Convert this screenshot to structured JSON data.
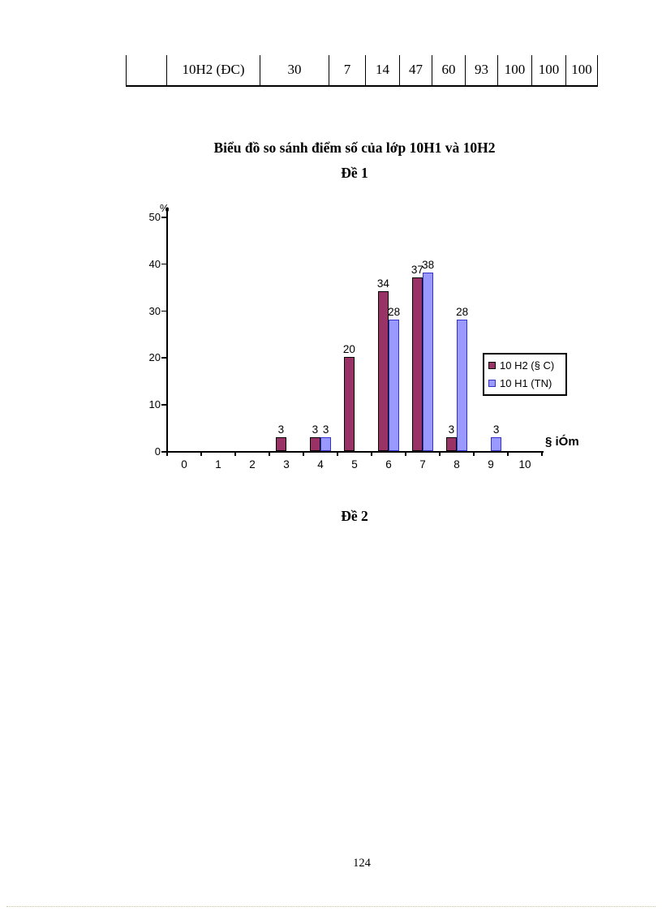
{
  "document": {
    "heading_de2": "Đề 2",
    "page_number": "124"
  },
  "table": {
    "row": [
      "",
      "10H2 (ĐC)",
      "30",
      "7",
      "14",
      "47",
      "60",
      "93",
      "100",
      "100",
      "100"
    ]
  },
  "chart_data": {
    "type": "bar",
    "title": "Biểu đồ so sánh điểm số của lớp 10H1 và 10H2",
    "subtitle": "Đề 1",
    "categories": [
      "0",
      "1",
      "2",
      "3",
      "4",
      "5",
      "6",
      "7",
      "8",
      "9",
      "10"
    ],
    "series": [
      {
        "name": "10 H2 (§ C)",
        "color": "#993366",
        "border_color": "#000000",
        "values": [
          0,
          0,
          0,
          3,
          3,
          20,
          34,
          37,
          3,
          0,
          0
        ]
      },
      {
        "name": "10 H1 (TN)",
        "color": "#9999FF",
        "border_color": "#3333CC",
        "values": [
          0,
          0,
          0,
          0,
          3,
          0,
          28,
          38,
          28,
          3,
          0
        ]
      }
    ],
    "xlabel": "§ iÓm",
    "ylabel": "%",
    "ylim": [
      0,
      50
    ],
    "yticks": [
      0,
      10,
      20,
      30,
      40,
      50
    ],
    "grid": false,
    "legend_position": "middle-right",
    "data_labels": true
  }
}
